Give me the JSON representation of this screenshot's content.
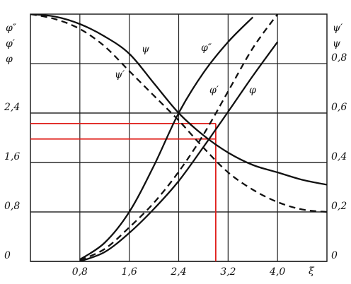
{
  "chart_data": {
    "type": "line",
    "ylabel": [
      "φ″",
      "φ′",
      "φ"
    ],
    "y2label": [
      "ψ′",
      "ψ"
    ],
    "xlabel": "ξ",
    "x": [
      0,
      0.4,
      0.8,
      1.2,
      1.6,
      2.0,
      2.4,
      2.8,
      3.2,
      3.6,
      4.0,
      4.4,
      4.8
    ],
    "xlim": [
      0,
      4.8
    ],
    "xticks": [
      {
        "value": 0.8,
        "label": "0,8"
      },
      {
        "value": 1.6,
        "label": "1,6"
      },
      {
        "value": 2.4,
        "label": "2,4"
      },
      {
        "value": 3.2,
        "label": "3,2"
      },
      {
        "value": 4.0,
        "label": "4,0"
      }
    ],
    "ylim": [
      0,
      4.0
    ],
    "yticks": [
      0,
      {
        "value": 0.8,
        "label": "0,8"
      },
      {
        "value": 1.6,
        "label": "1,6"
      },
      {
        "value": 2.4,
        "label": "2,4"
      }
    ],
    "y2lim": [
      0,
      1.0
    ],
    "y2ticks": [
      0,
      {
        "value": 0.2,
        "label": "0,2"
      },
      {
        "value": 0.4,
        "label": "0,4"
      },
      {
        "value": 0.6,
        "label": "0,6"
      },
      {
        "value": 0.8,
        "label": "0,8"
      }
    ],
    "grid": true,
    "series": [
      {
        "name": "ψ",
        "color": "#111111",
        "dashed": false,
        "axis": "y2",
        "values": [
          1.0,
          0.99,
          0.96,
          0.91,
          0.84,
          0.72,
          0.6,
          0.51,
          0.44,
          0.39,
          0.36,
          0.33,
          0.31
        ]
      },
      {
        "name": "ψ′",
        "color": "#111111",
        "dashed": true,
        "axis": "y2",
        "values": [
          1.0,
          0.98,
          0.94,
          0.87,
          0.77,
          0.67,
          0.57,
          0.46,
          0.36,
          0.29,
          0.24,
          0.21,
          0.2
        ]
      },
      {
        "name": "φ″",
        "color": "#111111",
        "dashed": false,
        "values": [
          null,
          null,
          0.03,
          0.3,
          0.8,
          1.55,
          2.4,
          3.05,
          3.55,
          3.95,
          null,
          null,
          null
        ]
      },
      {
        "name": "φ′",
        "color": "#111111",
        "dashed": true,
        "values": [
          null,
          null,
          0.02,
          0.2,
          0.55,
          0.95,
          1.45,
          2.05,
          2.75,
          3.45,
          4.0,
          null,
          null
        ]
      },
      {
        "name": "φ",
        "color": "#111111",
        "dashed": false,
        "values": [
          null,
          null,
          0,
          0.15,
          0.46,
          0.85,
          1.3,
          1.85,
          2.42,
          3.0,
          3.55,
          null,
          null
        ]
      }
    ],
    "reference_lines": {
      "color": "#e0201c",
      "x": 3.0,
      "y": [
        2.23,
        1.98
      ]
    }
  }
}
